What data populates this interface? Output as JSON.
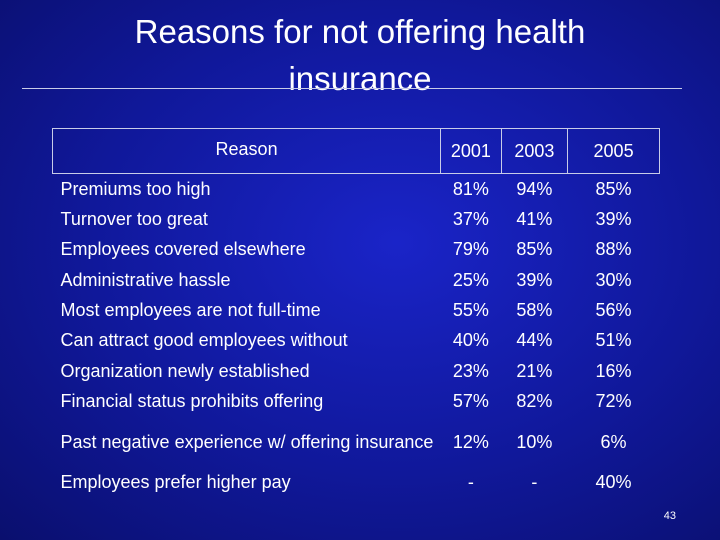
{
  "title": "Reasons for not offering health insurance",
  "table": {
    "headers": [
      "Reason",
      "2001",
      "2003",
      "2005"
    ],
    "rows": [
      {
        "reason": "Premiums too high",
        "y2001": "81%",
        "y2003": "94%",
        "y2005": "85%"
      },
      {
        "reason": "Turnover too great",
        "y2001": "37%",
        "y2003": "41%",
        "y2005": "39%"
      },
      {
        "reason": "Employees covered elsewhere",
        "y2001": "79%",
        "y2003": "85%",
        "y2005": "88%"
      },
      {
        "reason": "Administrative hassle",
        "y2001": "25%",
        "y2003": "39%",
        "y2005": "30%"
      },
      {
        "reason": "Most employees are not full-time",
        "y2001": "55%",
        "y2003": "58%",
        "y2005": "56%"
      },
      {
        "reason": "Can attract good employees without",
        "y2001": "40%",
        "y2003": "44%",
        "y2005": "51%"
      },
      {
        "reason": "Organization newly established",
        "y2001": "23%",
        "y2003": "21%",
        "y2005": "16%"
      },
      {
        "reason": "Financial status prohibits offering",
        "y2001": "57%",
        "y2003": "82%",
        "y2005": "72%"
      },
      {
        "reason": "Past negative experience w/ offering insurance",
        "y2001": "12%",
        "y2003": "10%",
        "y2005": "6%"
      },
      {
        "reason": "Employees prefer higher pay",
        "y2001": "-",
        "y2003": "-",
        "y2005": "40%"
      }
    ]
  },
  "page_number": "43"
}
